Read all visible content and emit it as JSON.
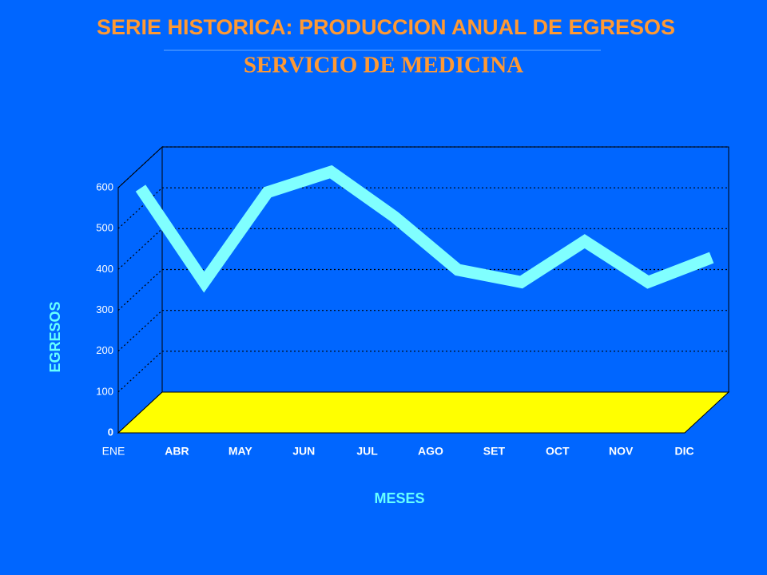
{
  "chart_data": {
    "type": "line",
    "title": "SERIE HISTORICA: PRODUCCION ANUAL DE EGRESOS",
    "subtitle": "SERVICIO DE MEDICINA",
    "x_label": "MESES",
    "y_label": "EGRESOS",
    "categories": [
      "ENE",
      "ABR",
      "MAY",
      "JUN",
      "JUL",
      "AGO",
      "SET",
      "OCT",
      "NOV",
      "DIC"
    ],
    "series": [
      {
        "name": "EGRESOS",
        "color": "#80ffff",
        "values": [
          550,
          320,
          540,
          590,
          480,
          350,
          320,
          420,
          320,
          380
        ]
      }
    ],
    "ylim": [
      0,
      600
    ],
    "yticks": [
      0,
      100,
      200,
      300,
      400,
      500,
      600
    ],
    "grid": true,
    "floor_color": "#ffff00"
  }
}
